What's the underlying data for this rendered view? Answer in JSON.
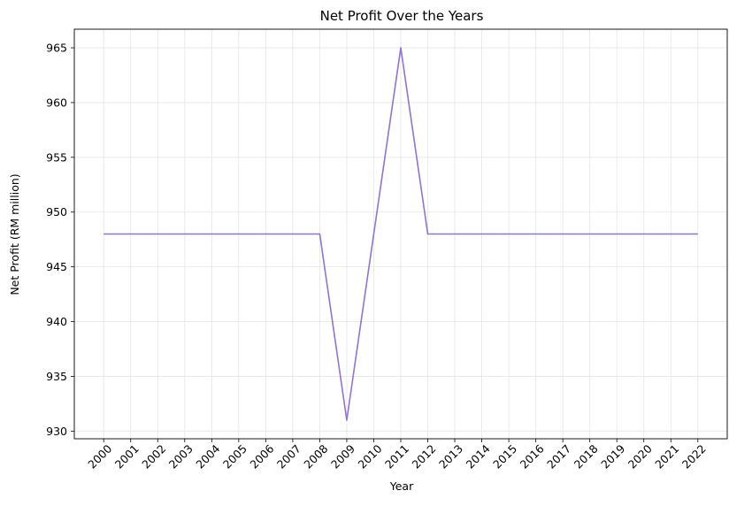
{
  "chart_data": {
    "type": "line",
    "title": "Net Profit Over the Years",
    "xlabel": "Year",
    "ylabel": "Net Profit (RM million)",
    "categories": [
      "2000",
      "2001",
      "2002",
      "2003",
      "2004",
      "2005",
      "2006",
      "2007",
      "2008",
      "2009",
      "2010",
      "2011",
      "2012",
      "2013",
      "2014",
      "2015",
      "2016",
      "2017",
      "2018",
      "2019",
      "2020",
      "2021",
      "2022"
    ],
    "series": [
      {
        "values": [
          948,
          948,
          948,
          948,
          948,
          948,
          948,
          948,
          948,
          931,
          948,
          965,
          948,
          948,
          948,
          948,
          948,
          948,
          948,
          948,
          948,
          948,
          948
        ]
      }
    ],
    "yticks": [
      930,
      935,
      940,
      945,
      950,
      955,
      960,
      965
    ],
    "ylim": [
      929.3,
      966.7
    ],
    "grid": true,
    "legend": "none",
    "colors": {
      "line": "#9370DB",
      "grid": "#e5e5e5",
      "axis": "#000000"
    }
  }
}
